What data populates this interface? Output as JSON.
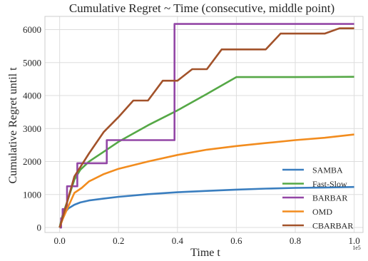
{
  "chart_data": {
    "type": "line",
    "title": "Cumulative Regret ~ Time (consecutive, middle point)",
    "xlabel": "Time t",
    "ylabel": "Cumulative Regret until t",
    "x_multiplier_label": "1e5",
    "xlim": [
      -0.05,
      1.03
    ],
    "ylim": [
      -150,
      6400
    ],
    "xticks": [
      0.0,
      0.2,
      0.4,
      0.6,
      0.8,
      1.0
    ],
    "xtick_labels": [
      "0.0",
      "0.2",
      "0.4",
      "0.6",
      "0.8",
      "1.0"
    ],
    "yticks": [
      0,
      1000,
      2000,
      3000,
      4000,
      5000,
      6000
    ],
    "ytick_labels": [
      "0",
      "1000",
      "2000",
      "3000",
      "4000",
      "5000",
      "6000"
    ],
    "grid": true,
    "legend_position": "lower-right",
    "series": [
      {
        "name": "SAMBA",
        "color": "#3a7ebf",
        "step": false,
        "points": [
          [
            0,
            0
          ],
          [
            0.01,
            380
          ],
          [
            0.03,
            580
          ],
          [
            0.05,
            690
          ],
          [
            0.07,
            760
          ],
          [
            0.1,
            820
          ],
          [
            0.15,
            880
          ],
          [
            0.2,
            930
          ],
          [
            0.3,
            1010
          ],
          [
            0.4,
            1070
          ],
          [
            0.5,
            1110
          ],
          [
            0.6,
            1150
          ],
          [
            0.7,
            1180
          ],
          [
            0.8,
            1200
          ],
          [
            0.9,
            1215
          ],
          [
            1.0,
            1230
          ]
        ]
      },
      {
        "name": "Fast-Slow",
        "color": "#55a846",
        "step": false,
        "points": [
          [
            0,
            0
          ],
          [
            0.01,
            380
          ],
          [
            0.03,
            900
          ],
          [
            0.05,
            1450
          ],
          [
            0.07,
            1750
          ],
          [
            0.1,
            2000
          ],
          [
            0.15,
            2300
          ],
          [
            0.2,
            2600
          ],
          [
            0.3,
            3100
          ],
          [
            0.4,
            3550
          ],
          [
            0.5,
            4050
          ],
          [
            0.6,
            4560
          ],
          [
            0.7,
            4560
          ],
          [
            0.8,
            4560
          ],
          [
            0.9,
            4565
          ],
          [
            1.0,
            4570
          ]
        ]
      },
      {
        "name": "BARBAR",
        "color": "#9347a6",
        "step": true,
        "points": [
          [
            0,
            0
          ],
          [
            0.005,
            280
          ],
          [
            0.01,
            560
          ],
          [
            0.025,
            1250
          ],
          [
            0.06,
            1950
          ],
          [
            0.16,
            2650
          ],
          [
            0.39,
            6170
          ],
          [
            1.0,
            6170
          ]
        ]
      },
      {
        "name": "OMD",
        "color": "#f28c1e",
        "step": false,
        "points": [
          [
            0,
            0
          ],
          [
            0.01,
            250
          ],
          [
            0.03,
            650
          ],
          [
            0.05,
            1050
          ],
          [
            0.075,
            1200
          ],
          [
            0.1,
            1400
          ],
          [
            0.15,
            1620
          ],
          [
            0.2,
            1780
          ],
          [
            0.3,
            2000
          ],
          [
            0.4,
            2200
          ],
          [
            0.5,
            2360
          ],
          [
            0.6,
            2470
          ],
          [
            0.7,
            2560
          ],
          [
            0.8,
            2650
          ],
          [
            0.9,
            2720
          ],
          [
            1.0,
            2820
          ]
        ]
      },
      {
        "name": "CBARBAR",
        "color": "#a2522a",
        "step": false,
        "points": [
          [
            0,
            0
          ],
          [
            0.02,
            600
          ],
          [
            0.05,
            1550
          ],
          [
            0.1,
            2250
          ],
          [
            0.15,
            2900
          ],
          [
            0.2,
            3350
          ],
          [
            0.25,
            3850
          ],
          [
            0.27,
            3850
          ],
          [
            0.3,
            3850
          ],
          [
            0.35,
            4450
          ],
          [
            0.385,
            4450
          ],
          [
            0.4,
            4450
          ],
          [
            0.45,
            4800
          ],
          [
            0.5,
            4800
          ],
          [
            0.55,
            5400
          ],
          [
            0.6,
            5400
          ],
          [
            0.7,
            5400
          ],
          [
            0.75,
            5880
          ],
          [
            0.8,
            5880
          ],
          [
            0.9,
            5880
          ],
          [
            0.95,
            6040
          ],
          [
            1.0,
            6040
          ]
        ]
      }
    ]
  }
}
